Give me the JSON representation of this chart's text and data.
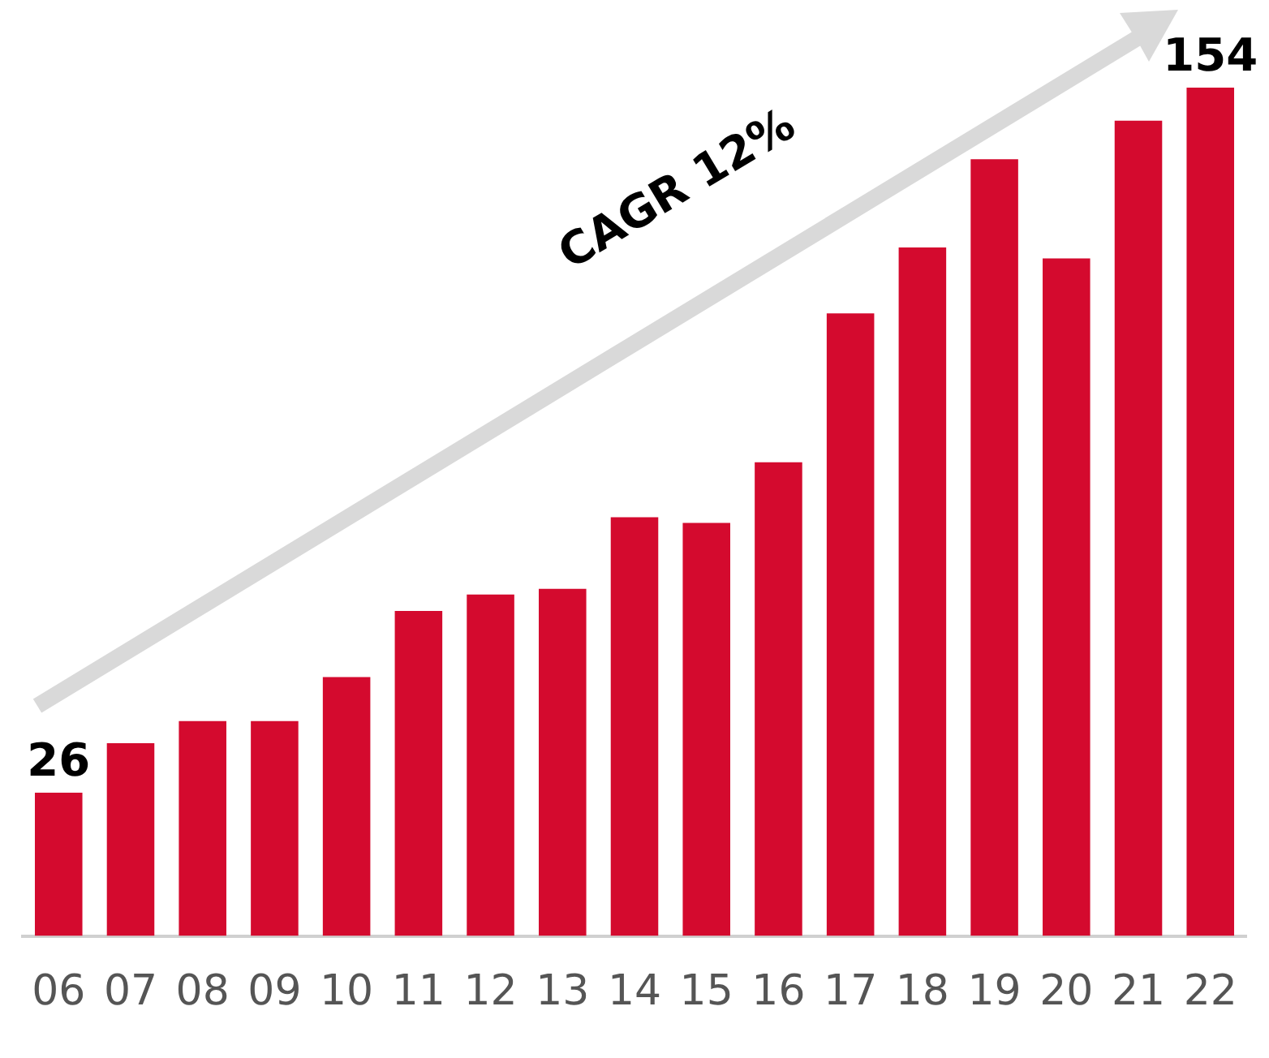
{
  "chart_data": {
    "type": "bar",
    "categories": [
      "06",
      "07",
      "08",
      "09",
      "10",
      "11",
      "12",
      "13",
      "14",
      "15",
      "16",
      "17",
      "18",
      "19",
      "20",
      "21",
      "22"
    ],
    "values": [
      26,
      35,
      39,
      39,
      47,
      59,
      62,
      63,
      76,
      75,
      86,
      113,
      125,
      141,
      123,
      148,
      154
    ],
    "value_labels": [
      "26",
      null,
      null,
      null,
      null,
      null,
      null,
      null,
      null,
      null,
      null,
      null,
      null,
      null,
      null,
      null,
      "154"
    ],
    "color": "#d40a2e",
    "annotations": [
      "CAGR 12%"
    ],
    "grid": false,
    "legend": false
  }
}
